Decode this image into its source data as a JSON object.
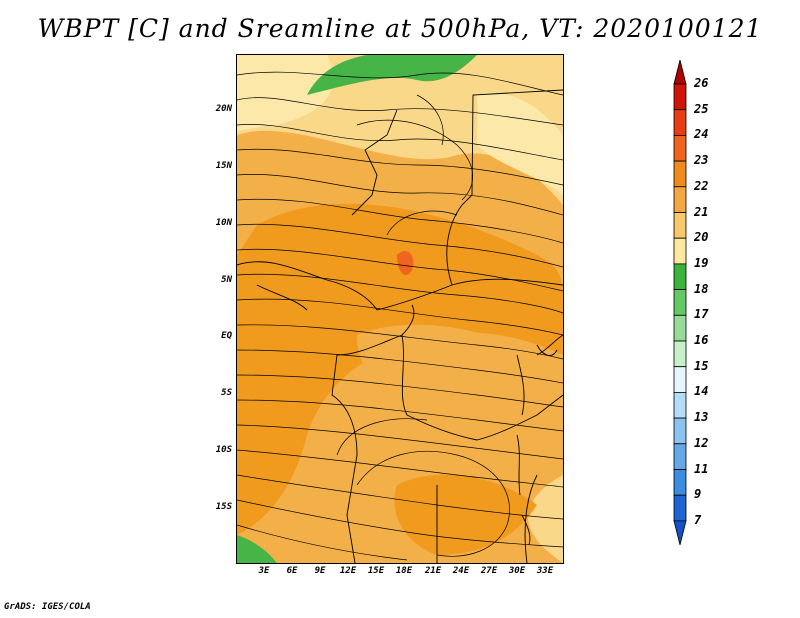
{
  "title": "WBPT [C] and Sreamline at 500hPa, VT: 2020100121",
  "credit": "GrADS: IGES/COLA",
  "map": {
    "y_labels": [
      "20N",
      "15N",
      "10N",
      "5N",
      "EQ",
      "5S",
      "10S",
      "15S"
    ],
    "x_labels": [
      "3E",
      "6E",
      "9E",
      "12E",
      "15E",
      "18E",
      "21E",
      "24E",
      "27E",
      "30E",
      "33E"
    ],
    "lon_range": [
      0,
      35
    ],
    "lat_range": [
      -20,
      24.5
    ]
  },
  "colorbar": {
    "labels": [
      "26",
      "25",
      "24",
      "23",
      "22",
      "21",
      "20",
      "19",
      "18",
      "17",
      "16",
      "15",
      "14",
      "13",
      "12",
      "11",
      "9",
      "7"
    ],
    "colors": [
      "#b00000",
      "#d01408",
      "#e83c14",
      "#f06420",
      "#f08a1c",
      "#f4a844",
      "#f8c86c",
      "#fce8a0",
      "#3cb43c",
      "#64c864",
      "#96dc96",
      "#c8f0c8",
      "#e6f7ff",
      "#b4dcf8",
      "#8cc4f0",
      "#64a8e8",
      "#3c8ce0",
      "#1e64d2",
      "#1450c8"
    ]
  },
  "colors": {
    "orange_dark": "#f09a1e",
    "orange": "#f4b048",
    "yellow": "#fad88a",
    "pale": "#fce8a8",
    "green": "#46b446"
  }
}
